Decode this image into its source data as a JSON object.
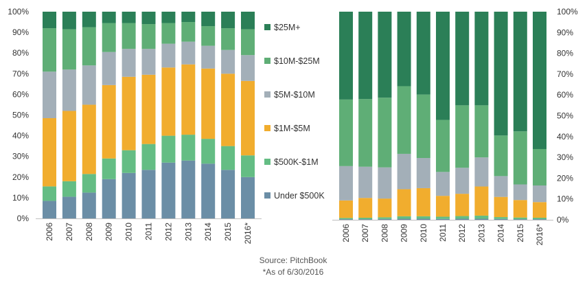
{
  "chart_data": [
    {
      "type": "bar",
      "stacked": true,
      "units": "percent of deal count",
      "categories": [
        "2006",
        "2007",
        "2008",
        "2009",
        "2010",
        "2011",
        "2012",
        "2013",
        "2014",
        "2015",
        "2016*"
      ],
      "ylim": [
        0,
        100
      ],
      "yticks": [
        "0%",
        "10%",
        "20%",
        "30%",
        "40%",
        "50%",
        "60%",
        "70%",
        "80%",
        "90%",
        "100%"
      ],
      "axis_side": "left",
      "series": [
        {
          "name": "Under $500K",
          "color": "#6b8ea6",
          "values": [
            8.5,
            10.5,
            12.5,
            19,
            22,
            23.5,
            27,
            28,
            26.5,
            23.5,
            20
          ]
        },
        {
          "name": "$500K-$1M",
          "color": "#64bd84",
          "values": [
            7,
            7.5,
            9,
            10,
            11,
            12.5,
            13,
            12.5,
            12,
            11.5,
            10.5
          ]
        },
        {
          "name": "$1M-$5M",
          "color": "#f1ad2e",
          "values": [
            33,
            34,
            33.5,
            35.5,
            35.5,
            33.5,
            33,
            34,
            34,
            35,
            36
          ]
        },
        {
          "name": "$5M-$10M",
          "color": "#a3afb8",
          "values": [
            22.5,
            20,
            19,
            16,
            13.5,
            12.5,
            11.5,
            11,
            11,
            11.5,
            12.5
          ]
        },
        {
          "name": "$10M-$25M",
          "color": "#5fae76",
          "values": [
            21,
            19.5,
            18.5,
            14,
            12.5,
            12,
            10,
            9.5,
            9.5,
            10.5,
            12.5
          ]
        },
        {
          "name": "$25M+",
          "color": "#2b7f57",
          "values": [
            8,
            8.5,
            7.5,
            5.5,
            5.5,
            6,
            5.5,
            5,
            7,
            8,
            8.5
          ]
        }
      ]
    },
    {
      "type": "bar",
      "stacked": true,
      "units": "percent of deal value",
      "categories": [
        "2006",
        "2007",
        "2008",
        "2009",
        "2010",
        "2011",
        "2012",
        "2013",
        "2014",
        "2015",
        "2016*"
      ],
      "ylim": [
        0,
        100
      ],
      "yticks": [
        "0%",
        "10%",
        "20%",
        "30%",
        "40%",
        "50%",
        "60%",
        "70%",
        "80%",
        "90%",
        "100%"
      ],
      "axis_side": "right",
      "series": [
        {
          "name": "Under $500K",
          "color": "#6b8ea6",
          "values": [
            0.3,
            0.3,
            0.4,
            0.5,
            0.5,
            0.4,
            0.5,
            0.5,
            0.4,
            0.3,
            0.3
          ]
        },
        {
          "name": "$500K-$1M",
          "color": "#64bd84",
          "values": [
            0.6,
            0.7,
            0.8,
            1.2,
            1.2,
            1.1,
            1.3,
            1.5,
            0.9,
            0.8,
            0.7
          ]
        },
        {
          "name": "$1M-$5M",
          "color": "#f1ad2e",
          "values": [
            8.4,
            9.5,
            9,
            13,
            13.5,
            10,
            10.7,
            14,
            9.7,
            8.4,
            7.5
          ]
        },
        {
          "name": "$5M-$10M",
          "color": "#a3afb8",
          "values": [
            16.5,
            15,
            15,
            17,
            14.5,
            11.5,
            12.5,
            14,
            10,
            7.5,
            8
          ]
        },
        {
          "name": "$10M-$25M",
          "color": "#5fae76",
          "values": [
            32,
            32.5,
            33.5,
            32.5,
            30.5,
            25,
            30,
            25,
            19.5,
            25.5,
            17.5
          ]
        },
        {
          "name": "$25M+",
          "color": "#2b7f57",
          "values": [
            42.2,
            42,
            41.3,
            35.8,
            39.8,
            52,
            45,
            45,
            59.5,
            57.5,
            66
          ]
        }
      ]
    }
  ],
  "legend": {
    "placement": "center",
    "items": [
      {
        "label": "$25M+",
        "color": "#2b7f57"
      },
      {
        "label": "$10M-$25M",
        "color": "#5fae76"
      },
      {
        "label": "$5M-$10M",
        "color": "#a3afb8"
      },
      {
        "label": "$1M-$5M",
        "color": "#f1ad2e"
      },
      {
        "label": "$500K-$1M",
        "color": "#64bd84"
      },
      {
        "label": "Under $500K",
        "color": "#6b8ea6"
      }
    ]
  },
  "footer": {
    "source": "Source: PitchBook",
    "note": "*As of 6/30/2016"
  }
}
